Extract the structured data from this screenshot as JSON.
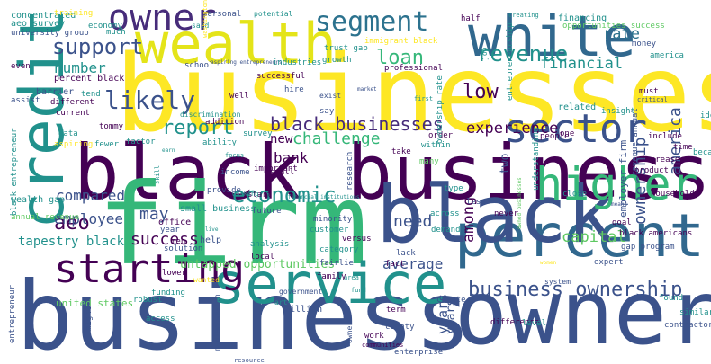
{
  "title": "word cloud",
  "palette": {
    "dark_purple": "#440154",
    "indigo": "#472c7a",
    "blue": "#3b528b",
    "steel": "#31688e",
    "teal": "#21918c",
    "sea": "#2c728e",
    "green": "#5ec962",
    "lime": "#addc30",
    "yellow": "#fde725"
  },
  "words": [
    {
      "text": "businesses",
      "color": "#fde725",
      "vertical": false
    },
    {
      "text": "black business",
      "color": "#440154",
      "vertical": false
    },
    {
      "text": "firm",
      "color": "#35b779",
      "vertical": false
    },
    {
      "text": "business",
      "color": "#3b528b",
      "vertical": false
    },
    {
      "text": "owner",
      "color": "#3b528b",
      "vertical": false
    },
    {
      "text": "percent",
      "color": "#31688e",
      "vertical": false
    },
    {
      "text": "service",
      "color": "#21918c",
      "vertical": false
    },
    {
      "text": "black",
      "color": "#3b528b",
      "vertical": false
    },
    {
      "text": "white",
      "color": "#31688e",
      "vertical": false
    },
    {
      "text": "wealth",
      "color": "#e4e419",
      "vertical": false
    },
    {
      "text": "owner",
      "color": "#472c7a",
      "vertical": false
    },
    {
      "text": "credit",
      "color": "#21918c",
      "vertical": true
    },
    {
      "text": "segment",
      "color": "#2c728e",
      "vertical": false
    },
    {
      "text": "higher",
      "color": "#35b779",
      "vertical": false
    },
    {
      "text": "sector",
      "color": "#3b528b",
      "vertical": false
    },
    {
      "text": "starting",
      "color": "#440154",
      "vertical": false
    },
    {
      "text": "support",
      "color": "#3b528b",
      "vertical": false
    },
    {
      "text": "economic",
      "color": "#21918c",
      "vertical": false
    },
    {
      "text": "report",
      "color": "#21918c",
      "vertical": false
    },
    {
      "text": "black businesses",
      "color": "#472c7a",
      "vertical": false
    },
    {
      "text": "business ownership",
      "color": "#3b528b",
      "vertical": false
    },
    {
      "text": "loan",
      "color": "#35b779",
      "vertical": false
    },
    {
      "text": "revenue",
      "color": "#21918c",
      "vertical": false
    },
    {
      "text": "financial",
      "color": "#21918c",
      "vertical": false
    },
    {
      "text": "rate",
      "color": "#2c728e",
      "vertical": false
    },
    {
      "text": "likely",
      "color": "#3b528b",
      "vertical": false
    },
    {
      "text": "experience",
      "color": "#440154",
      "vertical": false
    },
    {
      "text": "challenge",
      "color": "#35b779",
      "vertical": false
    },
    {
      "text": "ownership",
      "color": "#3b528b",
      "vertical": true
    },
    {
      "text": "america",
      "color": "#3b528b",
      "vertical": true
    },
    {
      "text": "aeo",
      "color": "#440154",
      "vertical": false
    },
    {
      "text": "need",
      "color": "#3b528b",
      "vertical": false
    },
    {
      "text": "low",
      "color": "#440154",
      "vertical": false
    },
    {
      "text": "among",
      "color": "#440154",
      "vertical": true
    },
    {
      "text": "capital",
      "color": "#5ec962",
      "vertical": false
    },
    {
      "text": "success",
      "color": "#440154",
      "vertical": false
    },
    {
      "text": "average",
      "color": "#3b528b",
      "vertical": false
    },
    {
      "text": "may",
      "color": "#3b528b",
      "vertical": false
    },
    {
      "text": "compared",
      "color": "#3b528b",
      "vertical": false
    },
    {
      "text": "employee",
      "color": "#3b528b",
      "vertical": false
    },
    {
      "text": "number",
      "color": "#21918c",
      "vertical": false
    },
    {
      "text": "bank",
      "color": "#440154",
      "vertical": false
    },
    {
      "text": "new",
      "color": "#440154",
      "vertical": false
    },
    {
      "text": "untapped opportunities",
      "color": "#5ec962",
      "vertical": false
    },
    {
      "text": "tapestry black",
      "color": "#21918c",
      "vertical": false
    },
    {
      "text": "years",
      "color": "#3b528b",
      "vertical": true
    },
    {
      "text": "years",
      "color": "#3b528b",
      "vertical": true
    },
    {
      "text": "two",
      "color": "#3b528b",
      "vertical": true
    },
    {
      "text": "system",
      "color": "#3b528b",
      "vertical": false
    },
    {
      "text": "concentrated",
      "color": "#21918c",
      "vertical": false
    },
    {
      "text": "training",
      "color": "#fde725",
      "vertical": false
    },
    {
      "text": "aeo survey",
      "color": "#21918c",
      "vertical": false
    },
    {
      "text": "university group",
      "color": "#3b528b",
      "vertical": false
    },
    {
      "text": "economy",
      "color": "#21918c",
      "vertical": false
    },
    {
      "text": "much",
      "color": "#21918c",
      "vertical": false
    },
    {
      "text": "even",
      "color": "#440154",
      "vertical": false
    },
    {
      "text": "percent black",
      "color": "#440154",
      "vertical": false
    },
    {
      "text": "barrier",
      "color": "#3b528b",
      "vertical": false
    },
    {
      "text": "tend",
      "color": "#21918c",
      "vertical": false
    },
    {
      "text": "assist",
      "color": "#3b528b",
      "vertical": false
    },
    {
      "text": "current",
      "color": "#440154",
      "vertical": false
    },
    {
      "text": "different",
      "color": "#440154",
      "vertical": false
    },
    {
      "text": "tommy",
      "color": "#440154",
      "vertical": false
    },
    {
      "text": "data",
      "color": "#21918c",
      "vertical": false
    },
    {
      "text": "aspiring",
      "color": "#fde725",
      "vertical": false
    },
    {
      "text": "fewer",
      "color": "#21918c",
      "vertical": false
    },
    {
      "text": "factor",
      "color": "#21918c",
      "vertical": false
    },
    {
      "text": "wealth gap",
      "color": "#21918c",
      "vertical": false
    },
    {
      "text": "annual revenue",
      "color": "#5ec962",
      "vertical": false
    },
    {
      "text": "black entrepreneur",
      "color": "#21918c",
      "vertical": true
    },
    {
      "text": "small business",
      "color": "#21918c",
      "vertical": false
    },
    {
      "text": "office",
      "color": "#440154",
      "vertical": false
    },
    {
      "text": "year",
      "color": "#3b528b",
      "vertical": false
    },
    {
      "text": "men",
      "color": "#440154",
      "vertical": false
    },
    {
      "text": "help",
      "color": "#3b528b",
      "vertical": false
    },
    {
      "text": "solution",
      "color": "#3b528b",
      "vertical": false
    },
    {
      "text": "lower",
      "color": "#440154",
      "vertical": false
    },
    {
      "text": "wanted",
      "color": "#fde725",
      "vertical": false
    },
    {
      "text": "united states",
      "color": "#5ec962",
      "vertical": false
    },
    {
      "text": "robust",
      "color": "#21918c",
      "vertical": false
    },
    {
      "text": "entrepreneur",
      "color": "#3b528b",
      "vertical": true
    },
    {
      "text": "might",
      "color": "#3b528b",
      "vertical": true
    },
    {
      "text": "access",
      "color": "#21918c",
      "vertical": false
    },
    {
      "text": "median wealth",
      "color": "#3b528b",
      "vertical": true
    },
    {
      "text": "funding",
      "color": "#21918c",
      "vertical": false
    },
    {
      "text": "analysis",
      "color": "#21918c",
      "vertical": false
    },
    {
      "text": "local",
      "color": "#440154",
      "vertical": false
    },
    {
      "text": "million",
      "color": "#3b528b",
      "vertical": false
    },
    {
      "text": "owners",
      "color": "#3b528b",
      "vertical": true
    },
    {
      "text": "resource",
      "color": "#3b528b",
      "vertical": false
    },
    {
      "text": "art",
      "color": "#21918c",
      "vertical": false
    },
    {
      "text": "government",
      "color": "#3b528b",
      "vertical": false
    },
    {
      "text": "personal",
      "color": "#3b528b",
      "vertical": false
    },
    {
      "text": "potential",
      "color": "#21918c",
      "vertical": false
    },
    {
      "text": "said",
      "color": "#21918c",
      "vertical": false
    },
    {
      "text": "school",
      "color": "#3b528b",
      "vertical": false
    },
    {
      "text": "washington",
      "color": "#fde725",
      "vertical": true
    },
    {
      "text": "aspiring entrepreneurs",
      "color": "#3b528b",
      "vertical": false
    },
    {
      "text": "industries",
      "color": "#21918c",
      "vertical": false
    },
    {
      "text": "trust gap",
      "color": "#21918c",
      "vertical": false
    },
    {
      "text": "immigrant black",
      "color": "#fde725",
      "vertical": false
    },
    {
      "text": "growth",
      "color": "#21918c",
      "vertical": false
    },
    {
      "text": "professional",
      "color": "#440154",
      "vertical": false
    },
    {
      "text": "successful",
      "color": "#440154",
      "vertical": false
    },
    {
      "text": "hire",
      "color": "#3b528b",
      "vertical": false
    },
    {
      "text": "well",
      "color": "#440154",
      "vertical": false
    },
    {
      "text": "exist",
      "color": "#3b528b",
      "vertical": false
    },
    {
      "text": "discrimination",
      "color": "#21918c",
      "vertical": false
    },
    {
      "text": "addition",
      "color": "#440154",
      "vertical": false
    },
    {
      "text": "survey",
      "color": "#21918c",
      "vertical": false
    },
    {
      "text": "ability",
      "color": "#21918c",
      "vertical": false
    },
    {
      "text": "focus",
      "color": "#21918c",
      "vertical": false
    },
    {
      "text": "say",
      "color": "#3b528b",
      "vertical": false
    },
    {
      "text": "small",
      "color": "#440154",
      "vertical": false
    },
    {
      "text": "important",
      "color": "#440154",
      "vertical": false
    },
    {
      "text": "income",
      "color": "#3b528b",
      "vertical": false
    },
    {
      "text": "provide",
      "color": "#3b528b",
      "vertical": false
    },
    {
      "text": "start",
      "color": "#440154",
      "vertical": false
    },
    {
      "text": "working",
      "color": "#21918c",
      "vertical": false
    },
    {
      "text": "future",
      "color": "#3b528b",
      "vertical": false
    },
    {
      "text": "skill",
      "color": "#21918c",
      "vertical": true
    },
    {
      "text": "earn",
      "color": "#21918c",
      "vertical": false
    },
    {
      "text": "live",
      "color": "#21918c",
      "vertical": false
    },
    {
      "text": "research",
      "color": "#3b528b",
      "vertical": true
    },
    {
      "text": "financial institutions",
      "color": "#21918c",
      "vertical": false
    },
    {
      "text": "minority",
      "color": "#3b528b",
      "vertical": false
    },
    {
      "text": "customer",
      "color": "#21918c",
      "vertical": false
    },
    {
      "text": "versus",
      "color": "#440154",
      "vertical": false
    },
    {
      "text": "category",
      "color": "#21918c",
      "vertical": false
    },
    {
      "text": "fairlie",
      "color": "#3b528b",
      "vertical": false
    },
    {
      "text": "family",
      "color": "#440154",
      "vertical": false
    },
    {
      "text": "area",
      "color": "#21918c",
      "vertical": false
    },
    {
      "text": "fund",
      "color": "#21918c",
      "vertical": false
    },
    {
      "text": "county",
      "color": "#3b528b",
      "vertical": false
    },
    {
      "text": "work",
      "color": "#440154",
      "vertical": false
    },
    {
      "text": "communities",
      "color": "#440154",
      "vertical": false
    },
    {
      "text": "enterprise",
      "color": "#3b528b",
      "vertical": false
    },
    {
      "text": "create",
      "color": "#3b528b",
      "vertical": false
    },
    {
      "text": "term",
      "color": "#440154",
      "vertical": false
    },
    {
      "text": "difference",
      "color": "#440154",
      "vertical": false
    },
    {
      "text": "level",
      "color": "#21918c",
      "vertical": false
    },
    {
      "text": "lack",
      "color": "#3b528b",
      "vertical": false
    },
    {
      "text": "fact",
      "color": "#440154",
      "vertical": false
    },
    {
      "text": "across",
      "color": "#21918c",
      "vertical": false
    },
    {
      "text": "never",
      "color": "#440154",
      "vertical": false
    },
    {
      "text": "less",
      "color": "#3b528b",
      "vertical": false
    },
    {
      "text": "demand",
      "color": "#21918c",
      "vertical": false
    },
    {
      "text": "many",
      "color": "#5ec962",
      "vertical": false
    },
    {
      "text": "within",
      "color": "#21918c",
      "vertical": false
    },
    {
      "text": "order",
      "color": "#440154",
      "vertical": false
    },
    {
      "text": "take",
      "color": "#440154",
      "vertical": false
    },
    {
      "text": "type",
      "color": "#21918c",
      "vertical": false
    },
    {
      "text": "ownership rate",
      "color": "#21918c",
      "vertical": true
    },
    {
      "text": "entrepreneurship",
      "color": "#21918c",
      "vertical": true
    },
    {
      "text": "job",
      "color": "#21918c",
      "vertical": true
    },
    {
      "text": "market",
      "color": "#3b528b",
      "vertical": false
    },
    {
      "text": "first",
      "color": "#21918c",
      "vertical": false
    },
    {
      "text": "related",
      "color": "#21918c",
      "vertical": false
    },
    {
      "text": "one",
      "color": "#440154",
      "vertical": false
    },
    {
      "text": "understanding",
      "color": "#21918c",
      "vertical": true
    },
    {
      "text": "people",
      "color": "#440154",
      "vertical": false
    },
    {
      "text": "expert",
      "color": "#3b528b",
      "vertical": false
    },
    {
      "text": "close",
      "color": "#21918c",
      "vertical": false
    },
    {
      "text": "half",
      "color": "#440154",
      "vertical": false
    },
    {
      "text": "creating",
      "color": "#21918c",
      "vertical": false
    },
    {
      "text": "financing",
      "color": "#21918c",
      "vertical": false
    },
    {
      "text": "opportunities success",
      "color": "#5ec962",
      "vertical": false
    },
    {
      "text": "money",
      "color": "#3b528b",
      "vertical": false
    },
    {
      "text": "america",
      "color": "#21918c",
      "vertical": false
    },
    {
      "text": "must",
      "color": "#440154",
      "vertical": false
    },
    {
      "text": "critical",
      "color": "#3b528b",
      "vertical": false
    },
    {
      "text": "insight",
      "color": "#21918c",
      "vertical": false
    },
    {
      "text": "idea",
      "color": "#21918c",
      "vertical": false
    },
    {
      "text": "employer firm",
      "color": "#3b528b",
      "vertical": true
    },
    {
      "text": "black americans",
      "color": "#440154",
      "vertical": false
    },
    {
      "text": "gap program",
      "color": "#3b528b",
      "vertical": false
    },
    {
      "text": "goal",
      "color": "#440154",
      "vertical": false
    },
    {
      "text": "household",
      "color": "#440154",
      "vertical": false
    },
    {
      "text": "revenue annual",
      "color": "#3b528b",
      "vertical": true
    },
    {
      "text": "product",
      "color": "#440154",
      "vertical": false
    },
    {
      "text": "increase",
      "color": "#440154",
      "vertical": false
    },
    {
      "text": "include",
      "color": "#440154",
      "vertical": false
    },
    {
      "text": "time",
      "color": "#440154",
      "vertical": false
    },
    {
      "text": "became",
      "color": "#21918c",
      "vertical": false
    },
    {
      "text": "means",
      "color": "#3b528b",
      "vertical": false
    },
    {
      "text": "owned businesses",
      "color": "#5ec962",
      "vertical": true
    },
    {
      "text": "women",
      "color": "#fde725",
      "vertical": false
    },
    {
      "text": "found",
      "color": "#21918c",
      "vertical": false
    },
    {
      "text": "contractors",
      "color": "#3b528b",
      "vertical": false
    },
    {
      "text": "similar",
      "color": "#21918c",
      "vertical": false
    },
    {
      "text": "trust",
      "color": "#21918c",
      "vertical": false
    },
    {
      "text": "using",
      "color": "#440154",
      "vertical": false
    },
    {
      "text": "three",
      "color": "#440154",
      "vertical": false
    },
    {
      "text": "owned",
      "color": "#440154",
      "vertical": false
    },
    {
      "text": "credit score",
      "color": "#440154",
      "vertical": false
    },
    {
      "text": "face",
      "color": "#21918c",
      "vertical": false
    },
    {
      "text": "location",
      "color": "#3b528b",
      "vertical": false
    },
    {
      "text": "opportunity",
      "color": "#21918c",
      "vertical": false
    }
  ]
}
